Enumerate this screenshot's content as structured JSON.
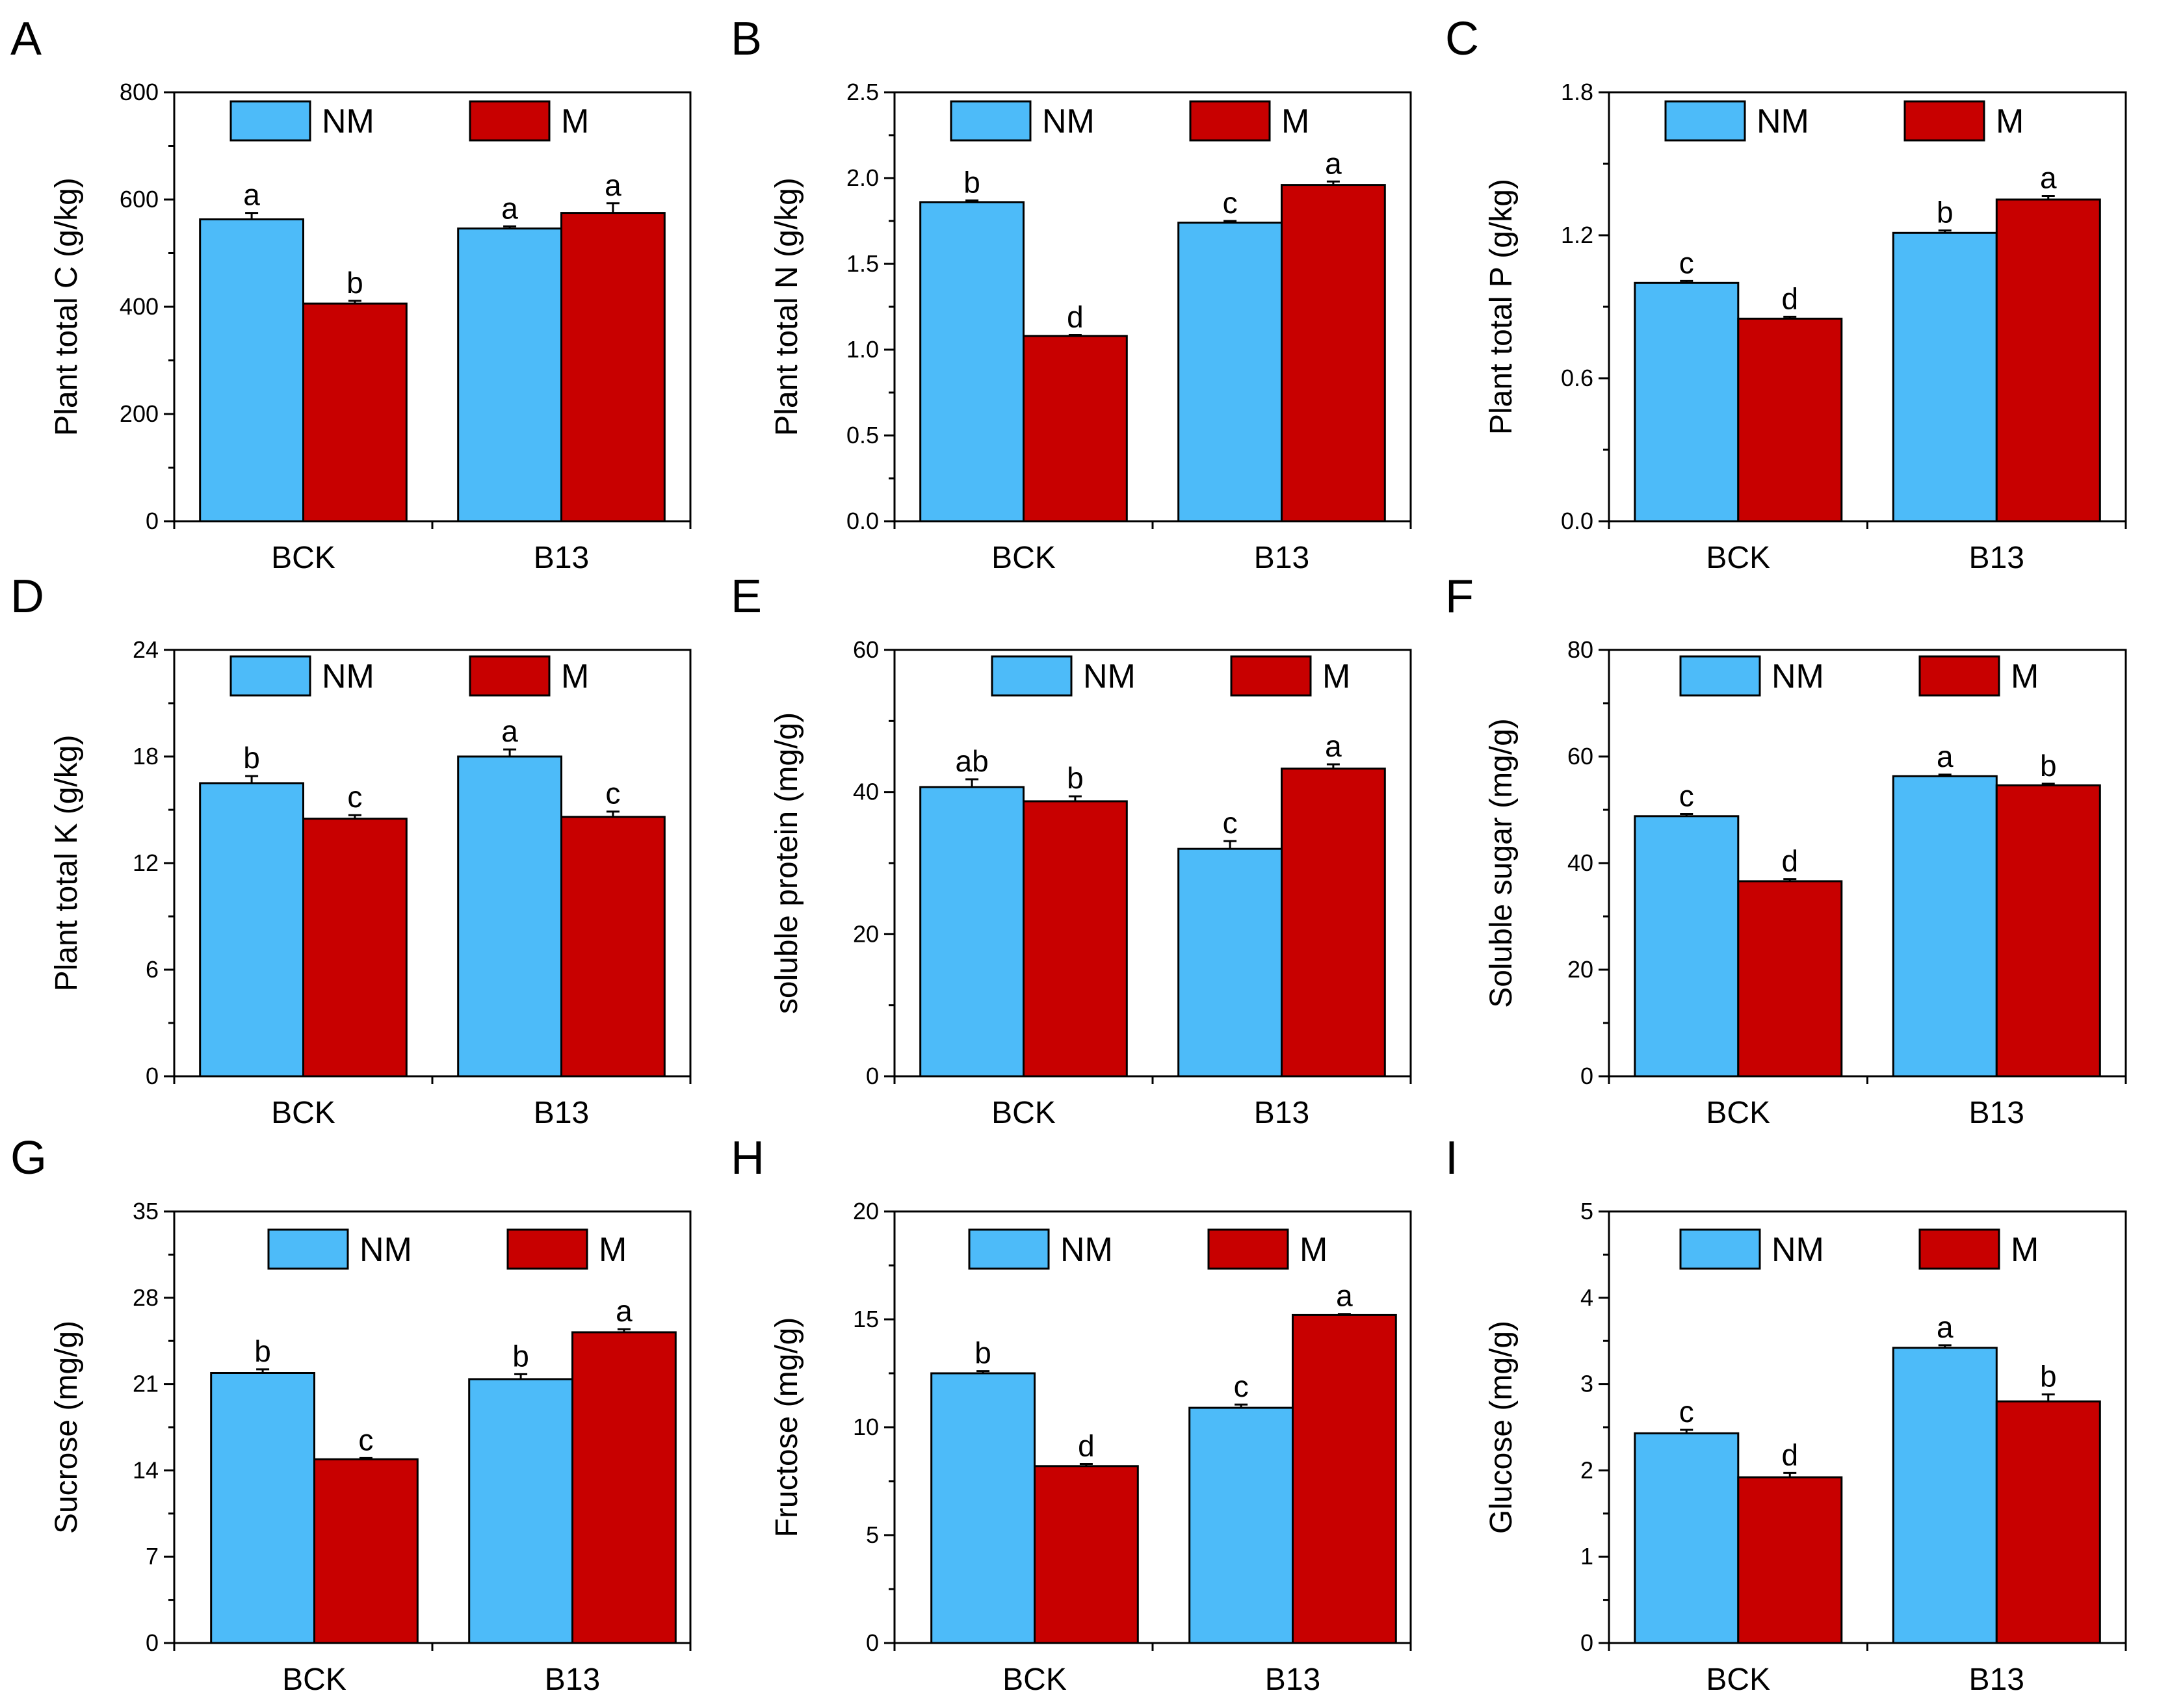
{
  "figure": {
    "panels": [
      "A",
      "B",
      "C",
      "D",
      "E",
      "F",
      "G",
      "H",
      "I"
    ]
  },
  "colors": {
    "NM": "#4dbbf9",
    "M": "#c80000",
    "axis": "#000000"
  },
  "chart_data": [
    {
      "type": "bar",
      "panel": "A",
      "ylabel": "Plant total C (g/kg)",
      "ylim": [
        0,
        800
      ],
      "yticks": [
        "0",
        "200",
        "400",
        "600",
        "800"
      ],
      "minor_ticks": 1,
      "categories": [
        "BCK",
        "B13"
      ],
      "legend": [
        "NM",
        "M"
      ],
      "series": [
        {
          "name": "NM",
          "values": [
            563,
            546
          ],
          "errors": [
            12,
            4
          ],
          "letters": [
            "a",
            "a"
          ]
        },
        {
          "name": "M",
          "values": [
            406,
            575
          ],
          "errors": [
            5,
            18
          ],
          "letters": [
            "b",
            "a"
          ]
        }
      ]
    },
    {
      "type": "bar",
      "panel": "B",
      "ylabel": "Plant total N (g/kg)",
      "ylim": [
        0,
        2.5
      ],
      "yticks": [
        "0.0",
        "0.5",
        "1.0",
        "1.5",
        "2.0",
        "2.5"
      ],
      "minor_ticks": 1,
      "categories": [
        "BCK",
        "B13"
      ],
      "legend": [
        "NM",
        "M"
      ],
      "series": [
        {
          "name": "NM",
          "values": [
            1.86,
            1.74
          ],
          "errors": [
            0.01,
            0.01
          ],
          "letters": [
            "b",
            "c"
          ]
        },
        {
          "name": "M",
          "values": [
            1.08,
            1.96
          ],
          "errors": [
            0.005,
            0.02
          ],
          "letters": [
            "d",
            "a"
          ]
        }
      ]
    },
    {
      "type": "bar",
      "panel": "C",
      "ylabel": "Plant total P (g/kg)",
      "ylim": [
        0,
        1.8
      ],
      "yticks": [
        "0.0",
        "0.6",
        "1.2",
        "1.8"
      ],
      "minor_ticks": 1,
      "categories": [
        "BCK",
        "B13"
      ],
      "legend": [
        "NM",
        "M"
      ],
      "series": [
        {
          "name": "NM",
          "values": [
            1.0,
            1.21
          ],
          "errors": [
            0.008,
            0.01
          ],
          "letters": [
            "c",
            "b"
          ]
        },
        {
          "name": "M",
          "values": [
            0.85,
            1.35
          ],
          "errors": [
            0.008,
            0.015
          ],
          "letters": [
            "d",
            "a"
          ]
        }
      ]
    },
    {
      "type": "bar",
      "panel": "D",
      "ylabel": "Plant total K (g/kg)",
      "ylim": [
        0,
        24
      ],
      "yticks": [
        "0",
        "6",
        "12",
        "18",
        "24"
      ],
      "minor_ticks": 1,
      "categories": [
        "BCK",
        "B13"
      ],
      "legend": [
        "NM",
        "M"
      ],
      "series": [
        {
          "name": "NM",
          "values": [
            16.5,
            18.0
          ],
          "errors": [
            0.4,
            0.4
          ],
          "letters": [
            "b",
            "a"
          ]
        },
        {
          "name": "M",
          "values": [
            14.5,
            14.6
          ],
          "errors": [
            0.2,
            0.3
          ],
          "letters": [
            "c",
            "c"
          ]
        }
      ]
    },
    {
      "type": "bar",
      "panel": "E",
      "ylabel": "soluble protein (mg/g)",
      "ylim": [
        0,
        60
      ],
      "yticks": [
        "0",
        "20",
        "40",
        "60"
      ],
      "minor_ticks": 1,
      "categories": [
        "BCK",
        "B13"
      ],
      "legend": [
        "NM",
        "M"
      ],
      "series": [
        {
          "name": "NM",
          "values": [
            40.7,
            32.0
          ],
          "errors": [
            1.1,
            1.1
          ],
          "letters": [
            "ab",
            "c"
          ]
        },
        {
          "name": "M",
          "values": [
            38.7,
            43.3
          ],
          "errors": [
            0.7,
            0.6
          ],
          "letters": [
            "b",
            "a"
          ]
        }
      ]
    },
    {
      "type": "bar",
      "panel": "F",
      "ylabel": "Soluble sugar (mg/g)",
      "ylim": [
        0,
        80
      ],
      "yticks": [
        "0",
        "20",
        "40",
        "60",
        "80"
      ],
      "minor_ticks": 1,
      "categories": [
        "BCK",
        "B13"
      ],
      "legend": [
        "NM",
        "M"
      ],
      "series": [
        {
          "name": "NM",
          "values": [
            48.8,
            56.3
          ],
          "errors": [
            0.4,
            0.3
          ],
          "letters": [
            "c",
            "a"
          ]
        },
        {
          "name": "M",
          "values": [
            36.6,
            54.6
          ],
          "errors": [
            0.4,
            0.3
          ],
          "letters": [
            "d",
            "b"
          ]
        }
      ]
    },
    {
      "type": "bar",
      "panel": "G",
      "ylabel": "Sucrose (mg/g)",
      "ylim": [
        0,
        35
      ],
      "yticks": [
        "0",
        "7",
        "14",
        "21",
        "28",
        "35"
      ],
      "minor_ticks": 1,
      "categories": [
        "BCK",
        "B13"
      ],
      "legend": [
        "NM",
        "M"
      ],
      "series": [
        {
          "name": "NM",
          "values": [
            21.9,
            21.4
          ],
          "errors": [
            0.3,
            0.4
          ],
          "letters": [
            "b",
            "b"
          ]
        },
        {
          "name": "M",
          "values": [
            14.9,
            25.2
          ],
          "errors": [
            0.1,
            0.25
          ],
          "letters": [
            "c",
            "a"
          ]
        }
      ]
    },
    {
      "type": "bar",
      "panel": "H",
      "ylabel": "Fructose (mg/g)",
      "ylim": [
        0,
        20
      ],
      "yticks": [
        "0",
        "5",
        "10",
        "15",
        "20"
      ],
      "minor_ticks": 1,
      "categories": [
        "BCK",
        "B13"
      ],
      "legend": [
        "NM",
        "M"
      ],
      "series": [
        {
          "name": "NM",
          "values": [
            12.5,
            10.9
          ],
          "errors": [
            0.1,
            0.15
          ],
          "letters": [
            "b",
            "c"
          ]
        },
        {
          "name": "M",
          "values": [
            8.2,
            15.2
          ],
          "errors": [
            0.1,
            0.05
          ],
          "letters": [
            "d",
            "a"
          ]
        }
      ]
    },
    {
      "type": "bar",
      "panel": "I",
      "ylabel": "Glucose (mg/g)",
      "ylim": [
        0,
        5
      ],
      "yticks": [
        "0",
        "1",
        "2",
        "3",
        "4",
        "5"
      ],
      "minor_ticks": 1,
      "categories": [
        "BCK",
        "B13"
      ],
      "legend": [
        "NM",
        "M"
      ],
      "series": [
        {
          "name": "NM",
          "values": [
            2.43,
            3.42
          ],
          "errors": [
            0.04,
            0.03
          ],
          "letters": [
            "c",
            "a"
          ]
        },
        {
          "name": "M",
          "values": [
            1.92,
            2.8
          ],
          "errors": [
            0.05,
            0.08
          ],
          "letters": [
            "d",
            "b"
          ]
        }
      ]
    }
  ]
}
